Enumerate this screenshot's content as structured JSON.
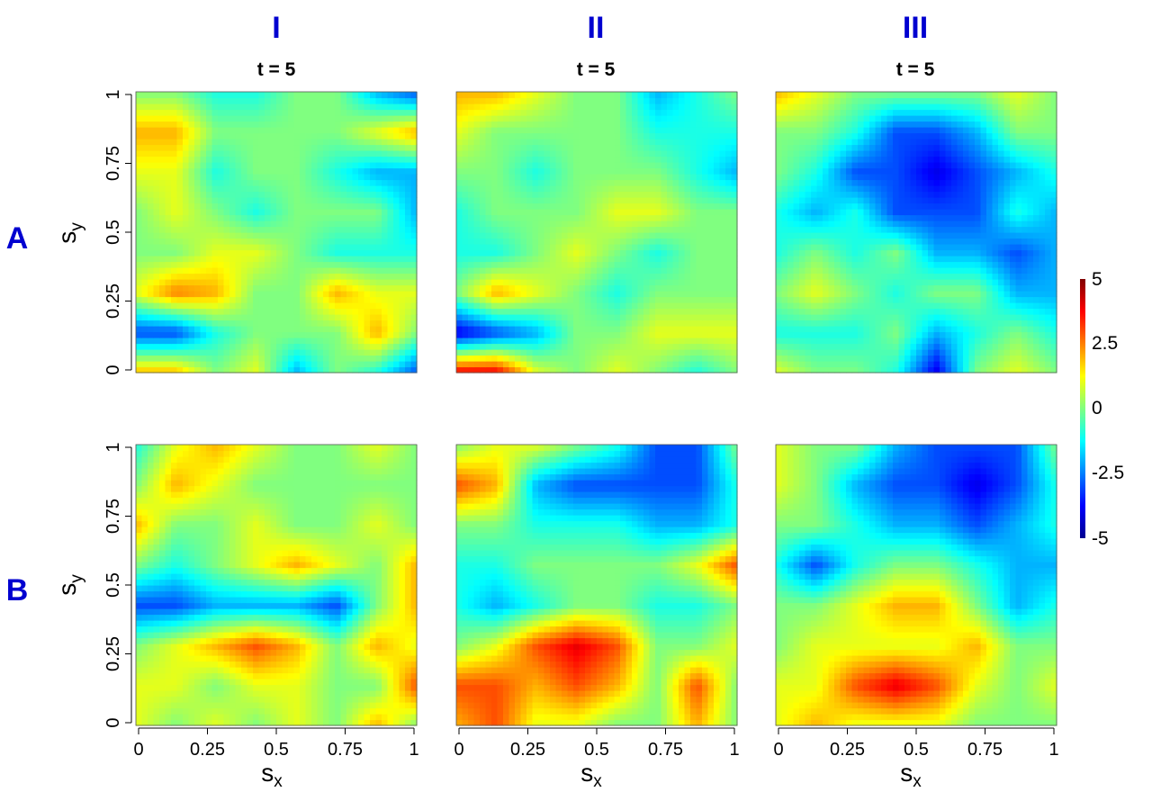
{
  "column_headers": [
    "I",
    "II",
    "III"
  ],
  "row_headers": [
    "A",
    "B"
  ],
  "panel_titles": [
    [
      "t = 5",
      "t = 5",
      "t = 5"
    ],
    [
      "",
      "",
      ""
    ]
  ],
  "axis_labels": {
    "x_main": "s",
    "x_sub": "x",
    "y_main": "s",
    "y_sub": "y"
  },
  "x_ticks": [
    "0",
    "0.25",
    "0.5",
    "0.75",
    "1"
  ],
  "y_ticks": [
    "0",
    "0.25",
    "0.5",
    "0.75",
    "1"
  ],
  "colorbar": {
    "ticks": [
      "5",
      "2.5",
      "0",
      "-2.5",
      "-5"
    ],
    "range": [
      -5,
      5
    ],
    "colors": [
      "#00008f",
      "#0000ff",
      "#00ffff",
      "#ffff00",
      "#ff0000",
      "#800000"
    ]
  },
  "chart_data": {
    "type": "heatmap",
    "x_range": [
      0,
      1
    ],
    "y_range": [
      0,
      1
    ],
    "value_range": [
      -5,
      5
    ],
    "grid_resolution": [
      8,
      8
    ],
    "panels": [
      {
        "row": "A",
        "column": "I",
        "title": "t = 5",
        "values": [
          [
            2,
            2,
            0,
            1,
            -2,
            0,
            -1,
            -3
          ],
          [
            -3,
            -3,
            -1,
            0,
            0,
            0,
            2,
            0
          ],
          [
            1,
            2.5,
            2,
            0,
            0,
            2,
            1,
            1
          ],
          [
            0,
            0,
            1,
            1,
            0,
            -1,
            -1,
            -1
          ],
          [
            0,
            1,
            0,
            -1,
            0,
            0,
            0,
            -2
          ],
          [
            1,
            1,
            -1,
            0,
            0,
            -1,
            -2,
            -2
          ],
          [
            2,
            2,
            0,
            0,
            0,
            0,
            1,
            2
          ],
          [
            0,
            0,
            -1,
            -1,
            0,
            0,
            -2,
            -3
          ]
        ]
      },
      {
        "row": "A",
        "column": "II",
        "title": "t = 5",
        "values": [
          [
            4,
            4,
            1,
            0,
            1,
            0,
            -1,
            0
          ],
          [
            -4,
            -3,
            -2,
            0,
            0,
            1,
            1,
            1
          ],
          [
            0,
            2,
            1,
            0,
            -1,
            0,
            0,
            0
          ],
          [
            -1,
            -1,
            0,
            1,
            0,
            -1,
            0,
            0
          ],
          [
            -1,
            0,
            0,
            0,
            1,
            1,
            0,
            0
          ],
          [
            0,
            0,
            -1,
            0,
            0,
            0,
            -1,
            -2
          ],
          [
            1,
            0,
            0,
            0,
            0,
            -1,
            -1,
            -1
          ],
          [
            2,
            2,
            1,
            0,
            0,
            -2,
            -1,
            0
          ]
        ]
      },
      {
        "row": "A",
        "column": "III",
        "title": "t = 5",
        "values": [
          [
            1,
            0,
            0,
            -1,
            -4,
            0,
            1,
            0
          ],
          [
            -1,
            -1,
            -1,
            0,
            -2,
            -1,
            0,
            -1
          ],
          [
            0,
            1,
            0,
            -1,
            0,
            0,
            -2,
            -2
          ],
          [
            -1,
            0,
            -1,
            0,
            -2,
            -2,
            -3,
            -2
          ],
          [
            -1,
            -2,
            -1,
            -3,
            -3,
            -3,
            -1,
            -2
          ],
          [
            0,
            -1,
            -3,
            -3,
            -4,
            -3,
            -2,
            -1
          ],
          [
            0,
            0,
            -1,
            -3,
            -3,
            -2,
            0,
            0
          ],
          [
            2,
            1,
            0,
            0,
            0,
            0,
            1,
            0
          ]
        ]
      },
      {
        "row": "B",
        "column": "I",
        "title": "",
        "values": [
          [
            1,
            0,
            1,
            0,
            1,
            0,
            2,
            0
          ],
          [
            1,
            1,
            0,
            1,
            1,
            0,
            0,
            3
          ],
          [
            0,
            1,
            2,
            3,
            2,
            0,
            2,
            1
          ],
          [
            -3,
            -3,
            -2,
            -2,
            -2,
            -3,
            0,
            2
          ],
          [
            0,
            -1,
            0,
            1,
            2,
            1,
            0,
            2
          ],
          [
            2,
            0,
            0,
            1,
            0,
            0,
            1,
            0
          ],
          [
            0,
            2,
            1,
            0,
            0,
            0,
            0,
            0
          ],
          [
            -1,
            1,
            2,
            1,
            0,
            0,
            1,
            0
          ]
        ]
      },
      {
        "row": "B",
        "column": "II",
        "title": "",
        "values": [
          [
            2,
            3,
            1,
            1,
            0,
            0,
            2,
            0
          ],
          [
            3,
            3,
            2,
            3,
            2,
            0,
            3,
            0
          ],
          [
            0,
            1,
            3,
            4,
            3,
            0,
            0,
            1
          ],
          [
            -1,
            -2,
            -1,
            0,
            0,
            -1,
            -1,
            0
          ],
          [
            -1,
            -1,
            0,
            0,
            0,
            0,
            1,
            3
          ],
          [
            0,
            0,
            -1,
            -1,
            -1,
            -2,
            -2,
            -1
          ],
          [
            3,
            2,
            -2,
            -3,
            -3,
            -3,
            -3,
            -1
          ],
          [
            0,
            1,
            1,
            0,
            -1,
            -3,
            -3,
            0
          ]
        ]
      },
      {
        "row": "B",
        "column": "III",
        "title": "",
        "values": [
          [
            1,
            2,
            1,
            1,
            1,
            0,
            0,
            0
          ],
          [
            1,
            1,
            3,
            4,
            3,
            1,
            0,
            1
          ],
          [
            0,
            1,
            1,
            1,
            1,
            2,
            0,
            0
          ],
          [
            0,
            0,
            1,
            2,
            2,
            0,
            -2,
            -1
          ],
          [
            -1,
            -3,
            -1,
            0,
            0,
            -1,
            -2,
            -2
          ],
          [
            0,
            0,
            -1,
            -2,
            -2,
            -3,
            -2,
            -1
          ],
          [
            1,
            0,
            -2,
            -3,
            -3,
            -4,
            -3,
            -1
          ],
          [
            1,
            0,
            0,
            -2,
            -3,
            -3,
            -3,
            0
          ]
        ]
      }
    ]
  }
}
